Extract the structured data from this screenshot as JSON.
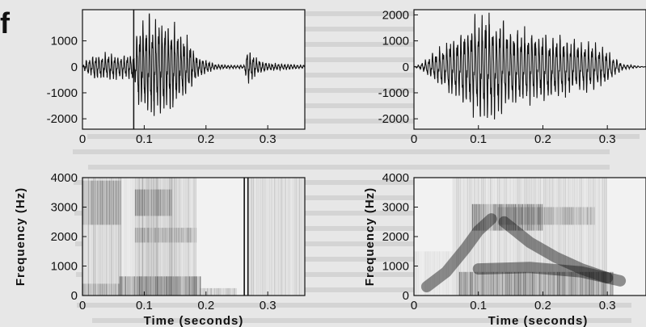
{
  "corner_letter": "f",
  "colors": {
    "ink": "#111111",
    "background": "#e7e7e7"
  },
  "chart_data": [
    {
      "type": "line",
      "kind": "waveform",
      "panel": "top-left",
      "xlim": [
        0,
        0.36
      ],
      "ylim": [
        -2400,
        2200
      ],
      "xticks": [
        0,
        0.1,
        0.2,
        0.3
      ],
      "xtick_labels": [
        "0",
        "0.1",
        "0.2",
        "0.3"
      ],
      "yticks": [
        1000,
        0,
        -1000,
        -2000
      ],
      "ytick_labels": [
        "1000",
        "0",
        "-1000",
        "-2000"
      ],
      "xlabel": "",
      "ylabel": "",
      "vertical_line_x": 0.083,
      "envelope": [
        [
          0.0,
          0
        ],
        [
          0.005,
          250
        ],
        [
          0.02,
          450
        ],
        [
          0.04,
          500
        ],
        [
          0.055,
          450
        ],
        [
          0.07,
          400
        ],
        [
          0.085,
          600
        ],
        [
          0.09,
          1600
        ],
        [
          0.11,
          1900
        ],
        [
          0.14,
          1700
        ],
        [
          0.16,
          1300
        ],
        [
          0.175,
          900
        ],
        [
          0.185,
          450
        ],
        [
          0.2,
          250
        ],
        [
          0.215,
          100
        ],
        [
          0.24,
          60
        ],
        [
          0.262,
          60
        ],
        [
          0.266,
          650
        ],
        [
          0.28,
          350
        ],
        [
          0.3,
          150
        ],
        [
          0.36,
          60
        ]
      ],
      "period": 0.0051
    },
    {
      "type": "line",
      "kind": "waveform",
      "panel": "top-right",
      "xlim": [
        0,
        0.36
      ],
      "ylim": [
        -2400,
        2200
      ],
      "xticks": [
        0,
        0.1,
        0.2,
        0.3
      ],
      "xtick_labels": [
        "0",
        "0.1",
        "0.2",
        "0.3"
      ],
      "yticks": [
        2000,
        1000,
        0,
        -1000,
        -2000
      ],
      "ytick_labels": [
        "2000",
        "1000",
        "0",
        "-1000",
        "-2000"
      ],
      "xlabel": "",
      "ylabel": "",
      "envelope": [
        [
          0.0,
          0
        ],
        [
          0.01,
          100
        ],
        [
          0.03,
          500
        ],
        [
          0.05,
          900
        ],
        [
          0.07,
          1300
        ],
        [
          0.09,
          1750
        ],
        [
          0.11,
          2050
        ],
        [
          0.13,
          1700
        ],
        [
          0.15,
          1450
        ],
        [
          0.2,
          1250
        ],
        [
          0.25,
          1000
        ],
        [
          0.29,
          800
        ],
        [
          0.31,
          350
        ],
        [
          0.325,
          100
        ],
        [
          0.36,
          0
        ]
      ],
      "period": 0.0055
    },
    {
      "type": "heatmap",
      "kind": "spectrogram",
      "panel": "bottom-left",
      "xlim": [
        0,
        0.36
      ],
      "ylim": [
        0,
        4000
      ],
      "xticks": [
        0,
        0.1,
        0.2,
        0.3
      ],
      "xtick_labels": [
        "0",
        "0.1",
        "0.2",
        "0.3"
      ],
      "yticks": [
        4000,
        3000,
        2000,
        1000,
        0
      ],
      "ytick_labels": [
        "4000",
        "3000",
        "2000",
        "1000",
        "0"
      ],
      "xlabel": "Time (seconds)",
      "ylabel": "Frequency (Hz)",
      "regions": [
        {
          "t": [
            0.0,
            0.062
          ],
          "f": [
            0,
            4000
          ],
          "darkness": 0.45
        },
        {
          "t": [
            0.062,
            0.085
          ],
          "f": [
            0,
            4000
          ],
          "darkness": 0.15
        },
        {
          "t": [
            0.085,
            0.145
          ],
          "f": [
            0,
            4000
          ],
          "darkness": 0.6
        },
        {
          "t": [
            0.145,
            0.185
          ],
          "f": [
            0,
            4000
          ],
          "darkness": 0.4
        },
        {
          "t": [
            0.0,
            0.062
          ],
          "f": [
            2400,
            3900
          ],
          "darkness": 0.7
        },
        {
          "t": [
            0.085,
            0.145
          ],
          "f": [
            2700,
            3600
          ],
          "darkness": 0.75
        },
        {
          "t": [
            0.085,
            0.185
          ],
          "f": [
            1800,
            2300
          ],
          "darkness": 0.6
        },
        {
          "t": [
            0.06,
            0.19
          ],
          "f": [
            0,
            650
          ],
          "darkness": 0.95
        },
        {
          "t": [
            0.0,
            0.06
          ],
          "f": [
            0,
            400
          ],
          "darkness": 0.6
        },
        {
          "t": [
            0.19,
            0.25
          ],
          "f": [
            0,
            250
          ],
          "darkness": 0.55
        },
        {
          "t": [
            0.27,
            0.36
          ],
          "f": [
            0,
            4000
          ],
          "darkness": 0.35
        }
      ],
      "vertical_lines": [
        0.262,
        0.268
      ]
    },
    {
      "type": "heatmap",
      "kind": "spectrogram",
      "panel": "bottom-right",
      "xlim": [
        0,
        0.36
      ],
      "ylim": [
        0,
        4000
      ],
      "xticks": [
        0,
        0.1,
        0.2,
        0.3
      ],
      "xtick_labels": [
        "0",
        "0.1",
        "0.2",
        "0.3"
      ],
      "yticks": [
        4000,
        3000,
        2000,
        1000,
        0
      ],
      "ytick_labels": [
        "4000",
        "3000",
        "2000",
        "1000",
        "0"
      ],
      "xlabel": "Time (seconds)",
      "ylabel": "Frequency (Hz)",
      "regions": [
        {
          "t": [
            0.06,
            0.3
          ],
          "f": [
            0,
            4000
          ],
          "darkness": 0.3
        },
        {
          "t": [
            0.07,
            0.31
          ],
          "f": [
            0,
            800
          ],
          "darkness": 0.9
        },
        {
          "t": [
            0.09,
            0.2
          ],
          "f": [
            2200,
            3100
          ],
          "darkness": 0.95
        },
        {
          "t": [
            0.13,
            0.28
          ],
          "f": [
            2400,
            3000
          ],
          "darkness": 0.6
        },
        {
          "t": [
            0.0,
            0.06
          ],
          "f": [
            0,
            1500
          ],
          "darkness": 0.15
        }
      ],
      "formant_curves": [
        [
          [
            0.02,
            300
          ],
          [
            0.05,
            800
          ],
          [
            0.08,
            1600
          ],
          [
            0.1,
            2200
          ],
          [
            0.12,
            2600
          ]
        ],
        [
          [
            0.14,
            2500
          ],
          [
            0.18,
            1800
          ],
          [
            0.22,
            1300
          ],
          [
            0.26,
            900
          ],
          [
            0.3,
            600
          ]
        ],
        [
          [
            0.1,
            900
          ],
          [
            0.18,
            950
          ],
          [
            0.26,
            800
          ],
          [
            0.32,
            500
          ]
        ]
      ]
    }
  ]
}
